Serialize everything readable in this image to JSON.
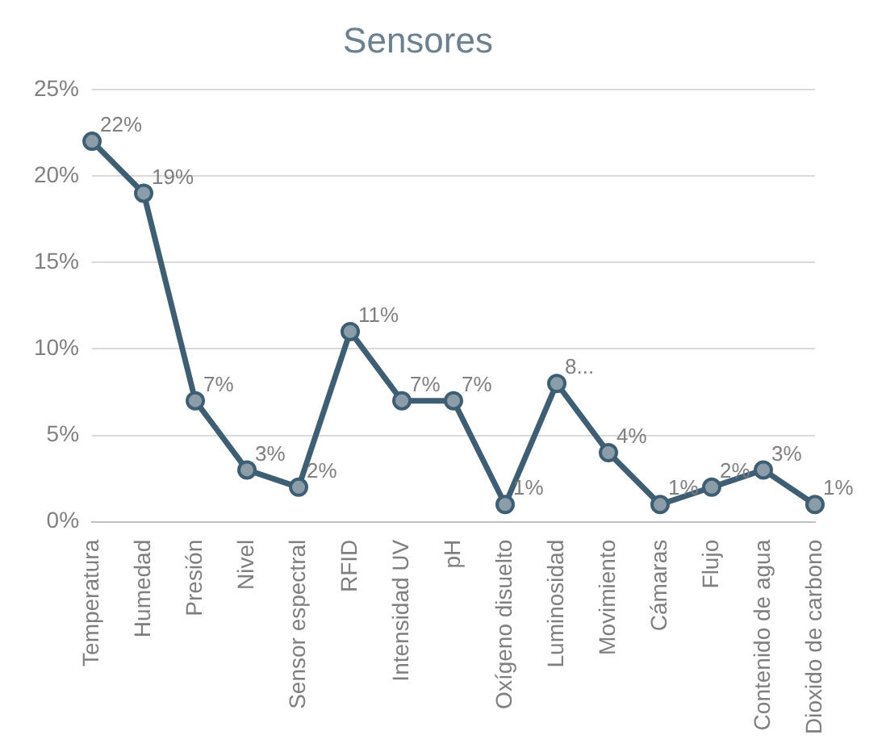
{
  "chart_data": {
    "type": "line",
    "title": "Sensores",
    "categories": [
      "Temperatura",
      "Humedad",
      "Presión",
      "Nivel",
      "Sensor espectral",
      "RFID",
      "Intensidad UV",
      "pH",
      "Oxígeno disuelto",
      "Luminosidad",
      "Movimiento",
      "Cámaras",
      "Flujo",
      "Contenido de agua",
      "Dioxido de carbono"
    ],
    "series": [
      {
        "color": "#3e5f73",
        "values": [
          22,
          19,
          7,
          3,
          2,
          11,
          7,
          7,
          1,
          8,
          4,
          1,
          2,
          3,
          1
        ],
        "value_labels": [
          "22%",
          "19%",
          "7%",
          "3%",
          "2%",
          "11%",
          "7%",
          "7%",
          "1%",
          "8...",
          "4%",
          "1%",
          "2%",
          "3%",
          "1%"
        ]
      }
    ],
    "ylim": [
      0,
      25
    ],
    "yticks": [
      {
        "value": 0,
        "label": "0%"
      },
      {
        "value": 5,
        "label": "5%"
      },
      {
        "value": 10,
        "label": "10%"
      },
      {
        "value": 15,
        "label": "15%"
      },
      {
        "value": 20,
        "label": "20%"
      },
      {
        "value": 25,
        "label": "25%"
      }
    ],
    "grid": "y",
    "legend": false,
    "marker": "circle",
    "line_style": "solid"
  }
}
